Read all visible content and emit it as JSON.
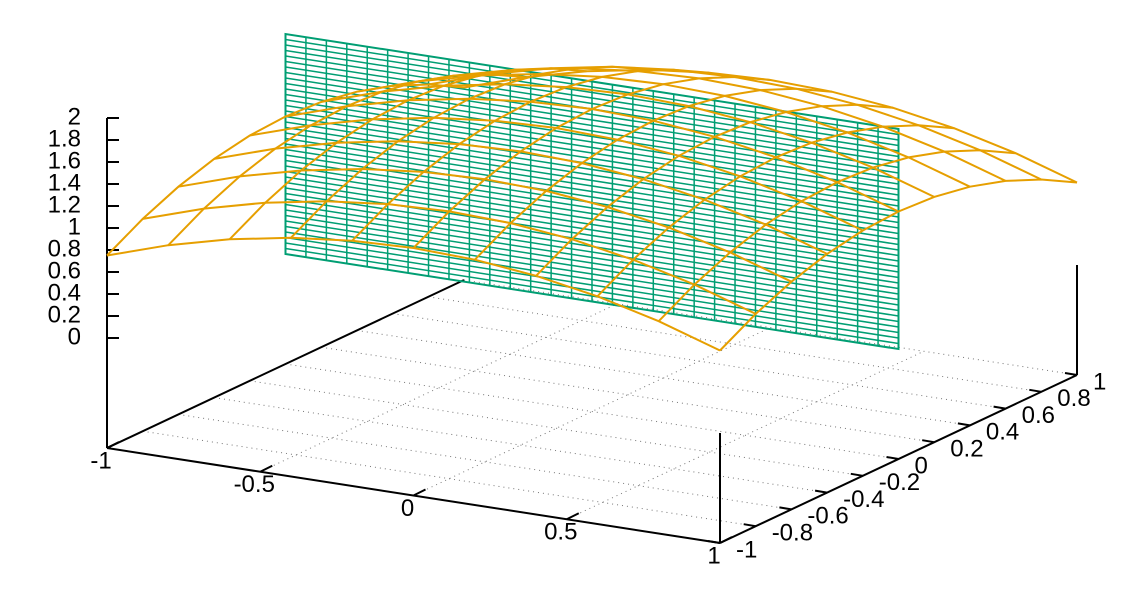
{
  "chart_data": {
    "type": "surface3d",
    "xlim": [
      -1,
      1
    ],
    "ylim": [
      -1,
      1
    ],
    "zlim": [
      0,
      2
    ],
    "ticslevel": 0.5,
    "xticks": [
      -1,
      -0.5,
      0,
      0.5,
      1
    ],
    "yticks": [
      -1,
      -0.8,
      -0.6,
      -0.4,
      -0.2,
      0,
      0.2,
      0.4,
      0.6,
      0.8,
      1
    ],
    "zticks": [
      0,
      0.2,
      0.4,
      0.6,
      0.8,
      1,
      1.2,
      1.4,
      1.6,
      1.8,
      2
    ],
    "grid": true,
    "plane": {
      "color": "#009e73",
      "y": 0,
      "x": [
        -1,
        1
      ],
      "z": [
        0,
        2
      ]
    },
    "surface": {
      "color": "#e69f00",
      "x": [
        -1,
        -0.8,
        -0.6,
        -0.4,
        -0.2,
        0,
        0.2,
        0.4,
        0.6,
        0.8,
        1
      ],
      "y": [
        -1,
        -0.8,
        -0.6,
        -0.4,
        -0.2,
        0,
        0.2,
        0.4,
        0.6,
        0.8,
        1
      ],
      "z": [
        [
          0.75,
          0.93,
          1.07,
          1.17,
          1.23,
          1.25,
          1.23,
          1.17,
          1.07,
          0.93,
          0.75
        ],
        [
          0.93,
          1.11,
          1.25,
          1.35,
          1.41,
          1.43,
          1.41,
          1.35,
          1.25,
          1.11,
          0.93
        ],
        [
          1.07,
          1.25,
          1.39,
          1.49,
          1.55,
          1.57,
          1.55,
          1.49,
          1.39,
          1.25,
          1.07
        ],
        [
          1.17,
          1.35,
          1.49,
          1.59,
          1.65,
          1.67,
          1.65,
          1.59,
          1.49,
          1.35,
          1.17
        ],
        [
          1.23,
          1.41,
          1.55,
          1.65,
          1.71,
          1.73,
          1.71,
          1.65,
          1.55,
          1.41,
          1.23
        ],
        [
          1.25,
          1.43,
          1.57,
          1.67,
          1.73,
          1.75,
          1.73,
          1.67,
          1.57,
          1.43,
          1.25
        ],
        [
          1.23,
          1.41,
          1.55,
          1.65,
          1.71,
          1.73,
          1.71,
          1.65,
          1.55,
          1.41,
          1.23
        ],
        [
          1.17,
          1.35,
          1.49,
          1.59,
          1.65,
          1.67,
          1.65,
          1.59,
          1.49,
          1.35,
          1.17
        ],
        [
          1.07,
          1.25,
          1.39,
          1.49,
          1.55,
          1.57,
          1.55,
          1.49,
          1.39,
          1.25,
          1.07
        ],
        [
          0.93,
          1.11,
          1.25,
          1.35,
          1.41,
          1.43,
          1.41,
          1.35,
          1.25,
          1.11,
          0.93
        ],
        [
          0.75,
          0.93,
          1.07,
          1.17,
          1.23,
          1.25,
          1.23,
          1.17,
          1.07,
          0.93,
          0.75
        ]
      ]
    }
  }
}
